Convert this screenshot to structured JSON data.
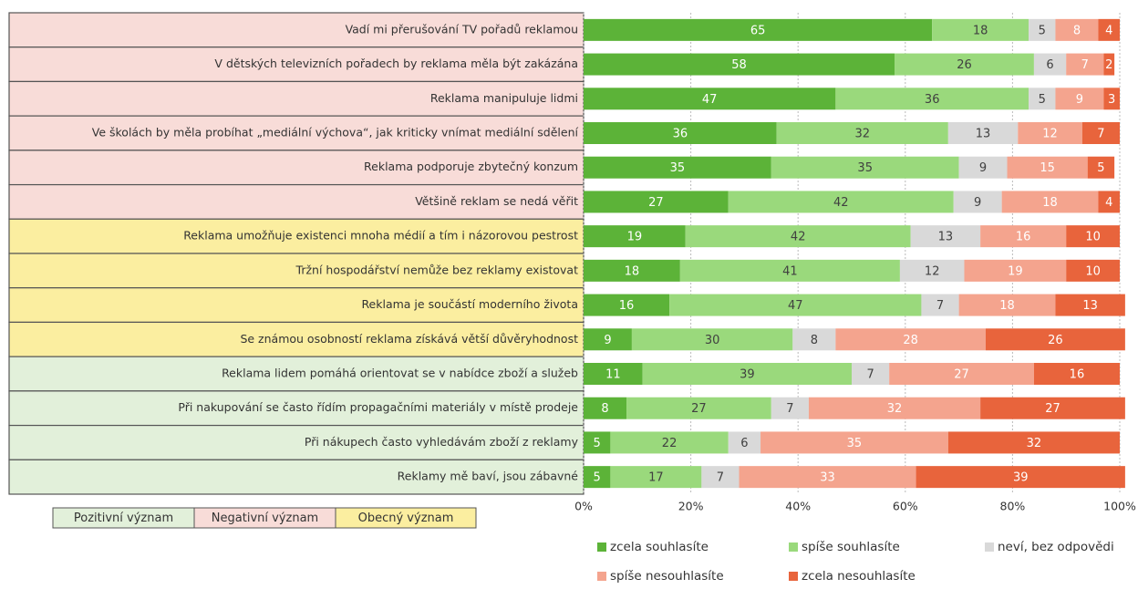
{
  "chart_data": {
    "type": "stacked-bar-horizontal",
    "categories": [
      "Vadí mi přerušování TV pořadů reklamou",
      "V dětských televizních pořadech by reklama měla být zakázána",
      "Reklama manipuluje lidmi",
      "Ve školách by měla probíhat „mediální výchova“, jak kriticky vnímat mediální sdělení",
      "Reklama podporuje zbytečný konzum",
      "Většině reklam se nedá věřit",
      "Reklama umožňuje existenci mnoha médií a tím i názorovou pestrost",
      "Tržní hospodářství nemůže bez reklamy existovat",
      "Reklama je součástí moderního života",
      "Se známou osobností reklama získává větší důvěryhodnost",
      "Reklama lidem pomáhá orientovat se v nabídce zboží a služeb",
      "Při nakupování se často řídím propagačními materiály v místě prodeje",
      "Při nákupech často vyhledávám zboží z reklamy",
      "Reklamy mě baví, jsou zábavné"
    ],
    "category_colors": [
      "#f8dcd8",
      "#f8dcd8",
      "#f8dcd8",
      "#f8dcd8",
      "#f8dcd8",
      "#f8dcd8",
      "#fbeea0",
      "#fbeea0",
      "#fbeea0",
      "#fbeea0",
      "#e2f0da",
      "#e2f0da",
      "#e2f0da",
      "#e2f0da"
    ],
    "group_legend": [
      {
        "name": "Pozitivní význam",
        "color": "#e2f0da"
      },
      {
        "name": "Negativní význam",
        "color": "#f8dcd8"
      },
      {
        "name": "Obecný význam",
        "color": "#fbeea0"
      }
    ],
    "series": [
      {
        "name": "zcela souhlasíte",
        "color": "#5cb338",
        "values": [
          65,
          58,
          47,
          36,
          35,
          27,
          19,
          18,
          16,
          9,
          11,
          8,
          5,
          5
        ]
      },
      {
        "name": "spíše souhlasíte",
        "color": "#9ad97c",
        "values": [
          18,
          26,
          36,
          32,
          35,
          42,
          42,
          41,
          47,
          30,
          39,
          27,
          22,
          17
        ]
      },
      {
        "name": "neví, bez odpovědi",
        "color": "#d9d9d9",
        "values": [
          5,
          6,
          5,
          13,
          9,
          9,
          13,
          12,
          7,
          8,
          7,
          7,
          6,
          7
        ]
      },
      {
        "name": "spíše nesouhlasíte",
        "color": "#f4a48e",
        "values": [
          8,
          7,
          9,
          12,
          15,
          18,
          16,
          19,
          18,
          28,
          27,
          32,
          35,
          33
        ]
      },
      {
        "name": "zcela nesouhlasíte",
        "color": "#e8643c",
        "values": [
          4,
          2,
          3,
          7,
          5,
          4,
          10,
          10,
          13,
          26,
          16,
          27,
          32,
          39
        ]
      }
    ],
    "xlim": [
      0,
      100
    ],
    "xticks": [
      {
        "value": 0,
        "label": "0%"
      },
      {
        "value": 20,
        "label": "20%"
      },
      {
        "value": 40,
        "label": "40%"
      },
      {
        "value": 60,
        "label": "60%"
      },
      {
        "value": 80,
        "label": "80%"
      },
      {
        "value": 100,
        "label": "100%"
      }
    ],
    "grid": true
  }
}
